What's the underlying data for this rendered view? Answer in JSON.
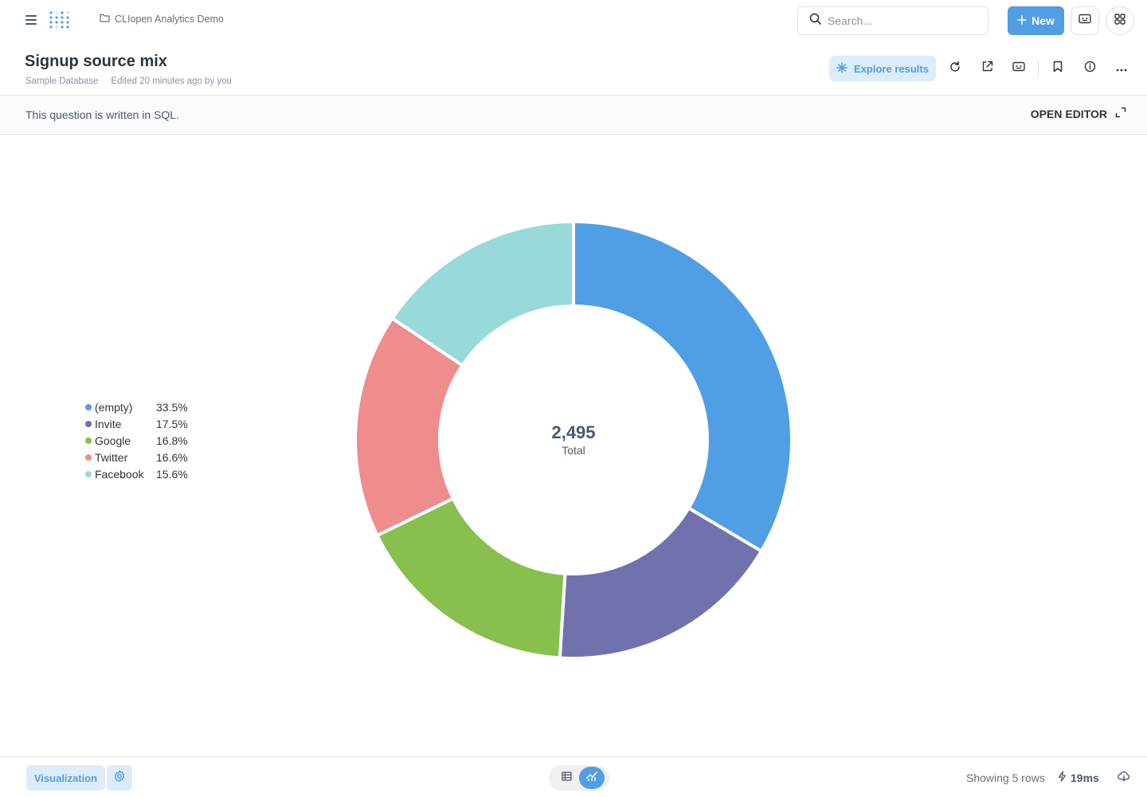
{
  "nav": {
    "collection": "CLIopen Analytics Demo",
    "search_placeholder": "Search...",
    "new_label": "New"
  },
  "question": {
    "title": "Signup source mix",
    "database": "Sample Database",
    "edited": "Edited 20 minutes ago by you",
    "explore_label": "Explore results"
  },
  "banner": {
    "text": "This question is written in SQL.",
    "open_editor": "OPEN EDITOR"
  },
  "chart_data": {
    "type": "pie",
    "donut": true,
    "total": "2,495",
    "total_label": "Total",
    "legend_position": "left",
    "slices": [
      {
        "name": "(empty)",
        "percent": "33.5%",
        "value": 33.5,
        "color": "#509ee3"
      },
      {
        "name": "Invite",
        "percent": "17.5%",
        "value": 17.5,
        "color": "#7172ad"
      },
      {
        "name": "Google",
        "percent": "16.8%",
        "value": 16.8,
        "color": "#88bf4d"
      },
      {
        "name": "Twitter",
        "percent": "16.6%",
        "value": 16.6,
        "color": "#ef8c8c"
      },
      {
        "name": "Facebook",
        "percent": "15.6%",
        "value": 15.6,
        "color": "#98d9d9"
      }
    ]
  },
  "footer": {
    "visualization_label": "Visualization",
    "rows_text": "Showing 5 rows",
    "timing": "19ms"
  },
  "colors": {
    "brand": "#509ee3",
    "brand_light": "#ddecfa"
  }
}
